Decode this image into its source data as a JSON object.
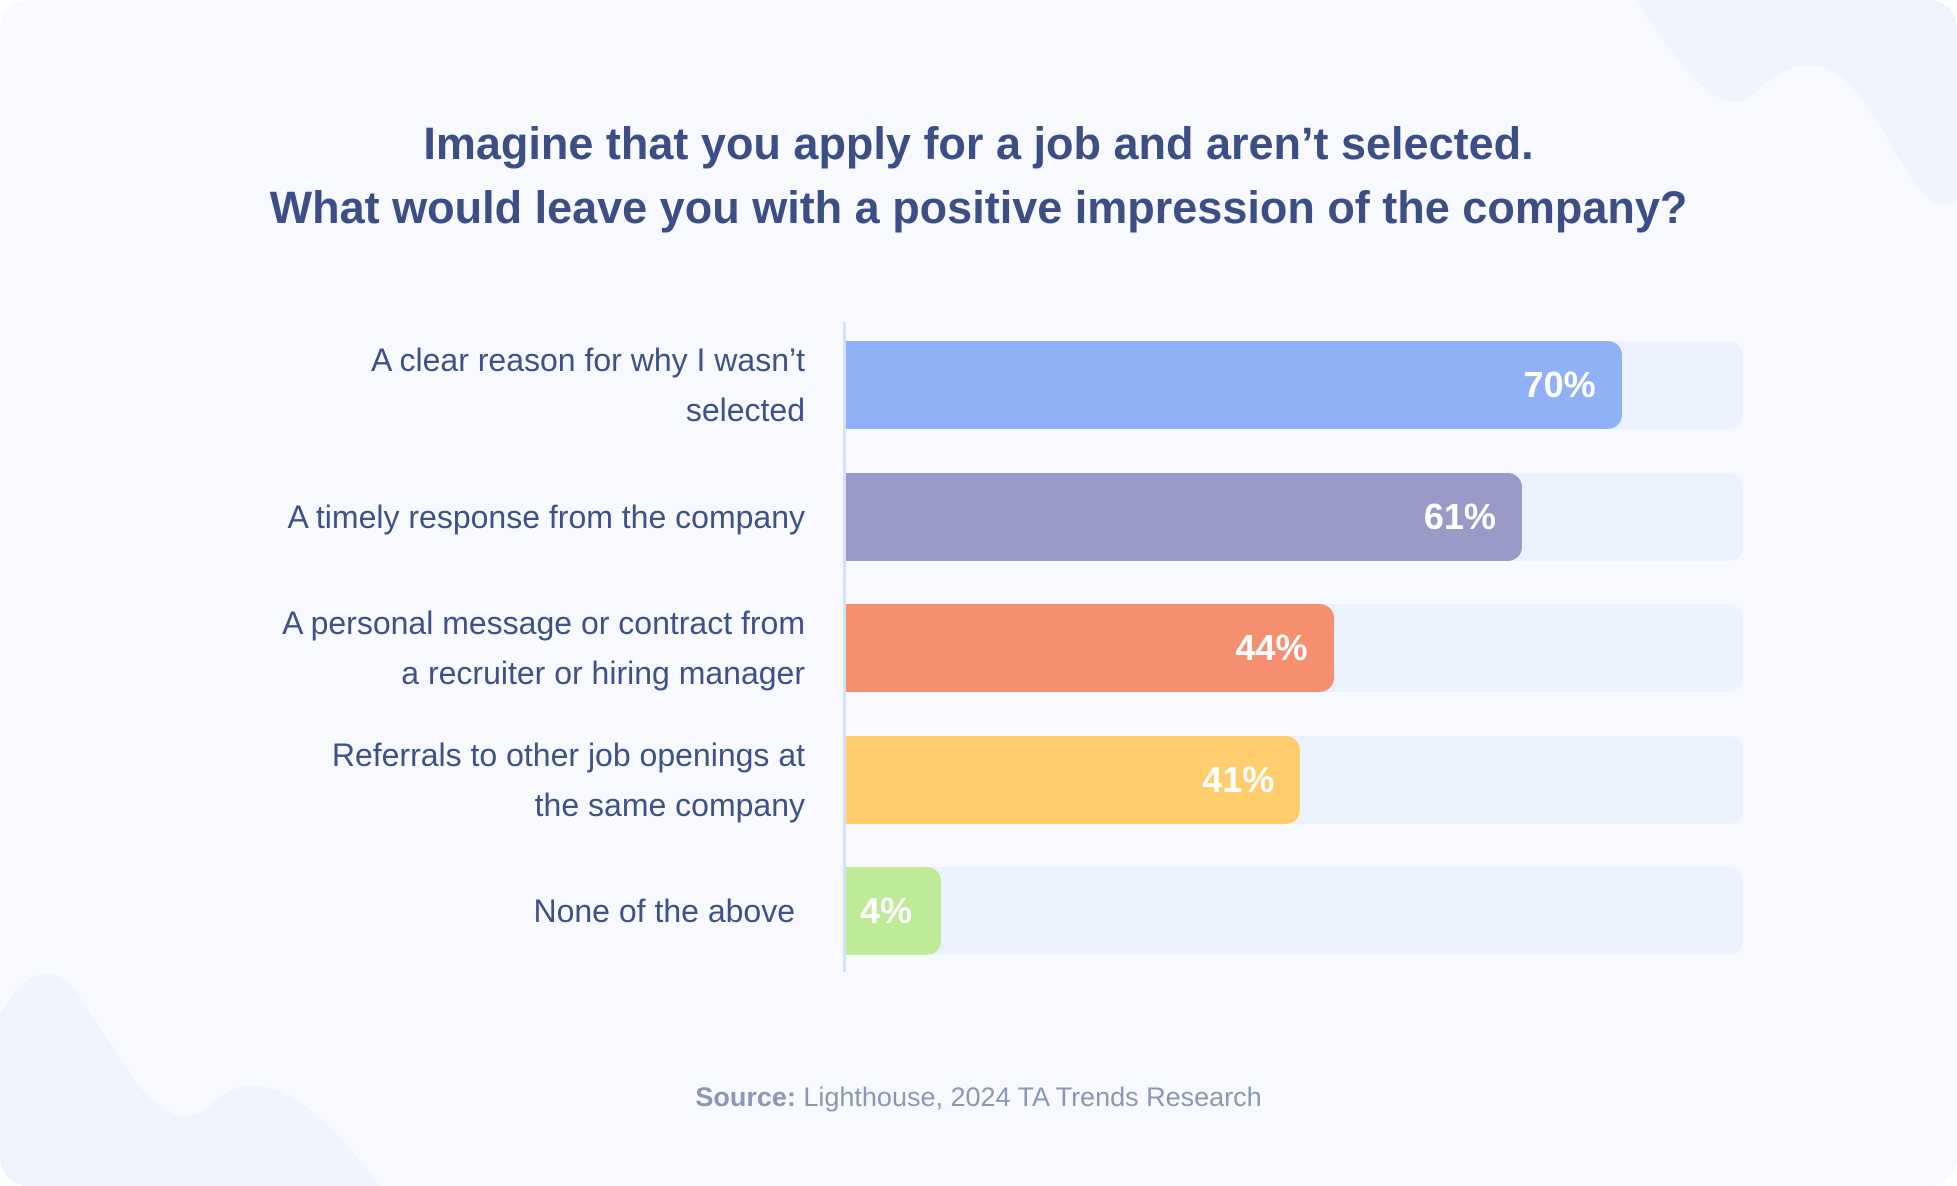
{
  "chart_data": {
    "type": "bar",
    "orientation": "horizontal",
    "title": "Imagine that you apply for a job and aren’t selected.\nWhat would leave you with a positive impression of the company?",
    "title_lines": [
      "Imagine that you apply for a job and aren’t selected.",
      "What would leave you with a positive impression of the company?"
    ],
    "categories": [
      [
        "A clear reason for why I wasn’t",
        "selected"
      ],
      [
        "A timely response from the company"
      ],
      [
        "A personal message or contract from",
        "a recruiter or hiring manager"
      ],
      [
        "Referrals to other job openings at",
        "the same company"
      ],
      [
        "None of the above"
      ]
    ],
    "values": [
      70,
      61,
      44,
      41,
      4
    ],
    "value_labels": [
      "70%",
      "61%",
      "44%",
      "41%",
      "4%"
    ],
    "colors": [
      "#8fb1f7",
      "#9a9ac9",
      "#f68f6f",
      "#ffcd6c",
      "#bdeb97"
    ],
    "track_color": "#ecf2fd",
    "grid": false,
    "xlabel": "",
    "ylabel": ""
  },
  "source": {
    "prefix": "Source:",
    "text": " Lighthouse, 2024 TA Trends Research"
  }
}
